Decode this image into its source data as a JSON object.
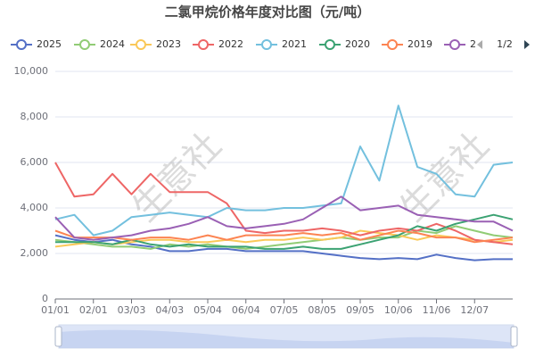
{
  "chart_data": {
    "type": "line",
    "title": "二氯甲烷价格年度对比图（元/吨）",
    "categories": [
      "01/01",
      null,
      "02/01",
      null,
      "03/03",
      null,
      "04/03",
      null,
      "05/04",
      null,
      "06/04",
      null,
      "07/05",
      null,
      "08/05",
      null,
      "09/05",
      null,
      "10/06",
      null,
      "11/06",
      null,
      "12/07",
      null,
      null
    ],
    "ylim": [
      0,
      10000
    ],
    "yticks": [
      0,
      {
        "value": 2000,
        "label": "2,000"
      },
      {
        "value": 4000,
        "label": "4,000"
      },
      {
        "value": 6000,
        "label": "6,000"
      },
      {
        "value": 8000,
        "label": "8,000"
      },
      {
        "value": 10000,
        "label": "10,000"
      }
    ],
    "grid": true,
    "legend_page": "1/2",
    "watermark": "生意社",
    "series": [
      {
        "name": "2025",
        "color": "#5470c6",
        "values": [
          2800,
          2600,
          2500,
          2600,
          2400,
          2300,
          2100,
          2100,
          2200,
          2200,
          2100,
          2100,
          2100,
          2100,
          2000,
          1900,
          1800,
          1750,
          1800,
          1750,
          1950,
          1800,
          1700,
          1750,
          1750
        ]
      },
      {
        "name": "2024",
        "color": "#91cc75",
        "values": [
          2600,
          2500,
          2400,
          2300,
          2300,
          2200,
          2400,
          2300,
          2400,
          2300,
          2200,
          2300,
          2400,
          2500,
          2600,
          2700,
          2600,
          2700,
          2700,
          3000,
          2900,
          3200,
          3000,
          2800,
          2700
        ]
      },
      {
        "name": "2023",
        "color": "#fac858",
        "values": [
          2300,
          2400,
          2500,
          2400,
          2500,
          2600,
          2600,
          2500,
          2500,
          2600,
          2500,
          2600,
          2600,
          2700,
          2600,
          2700,
          3000,
          2900,
          2800,
          2600,
          2800,
          2700,
          2600,
          2500,
          2600
        ]
      },
      {
        "name": "2022",
        "color": "#ee6666",
        "values": [
          6000,
          4500,
          4600,
          5500,
          4600,
          5500,
          4700,
          4700,
          4700,
          4200,
          3000,
          2900,
          3000,
          3000,
          3100,
          3000,
          2800,
          3000,
          3100,
          3000,
          3300,
          3000,
          2600,
          2500,
          2400
        ]
      },
      {
        "name": "2021",
        "color": "#73c0de",
        "values": [
          3500,
          3700,
          2800,
          3000,
          3600,
          3700,
          3800,
          3700,
          3600,
          4000,
          3900,
          3900,
          4000,
          4000,
          4100,
          4200,
          6700,
          5200,
          8500,
          5800,
          5500,
          4600,
          4500,
          5900,
          6000
        ]
      },
      {
        "name": "2020",
        "color": "#3ba272",
        "values": [
          2500,
          2500,
          2500,
          2400,
          2600,
          2400,
          2300,
          2400,
          2300,
          2300,
          2300,
          2200,
          2200,
          2300,
          2200,
          2200,
          2400,
          2600,
          2800,
          3200,
          3000,
          3300,
          3500,
          3700,
          3500
        ]
      },
      {
        "name": "2019",
        "color": "#fc8452",
        "values": [
          3000,
          2700,
          2700,
          2700,
          2600,
          2700,
          2700,
          2600,
          2800,
          2600,
          2800,
          2800,
          2800,
          2900,
          2800,
          2900,
          2600,
          2800,
          3000,
          2900,
          2700,
          2700,
          2500,
          2600,
          2700
        ]
      },
      {
        "name": "2",
        "color": "#9a60b4",
        "values": [
          3600,
          2700,
          2600,
          2700,
          2800,
          3000,
          3100,
          3300,
          3600,
          3200,
          3100,
          3200,
          3300,
          3500,
          4000,
          4500,
          3900,
          4000,
          4100,
          3700,
          3600,
          3500,
          3400,
          3400,
          3000
        ]
      }
    ]
  }
}
